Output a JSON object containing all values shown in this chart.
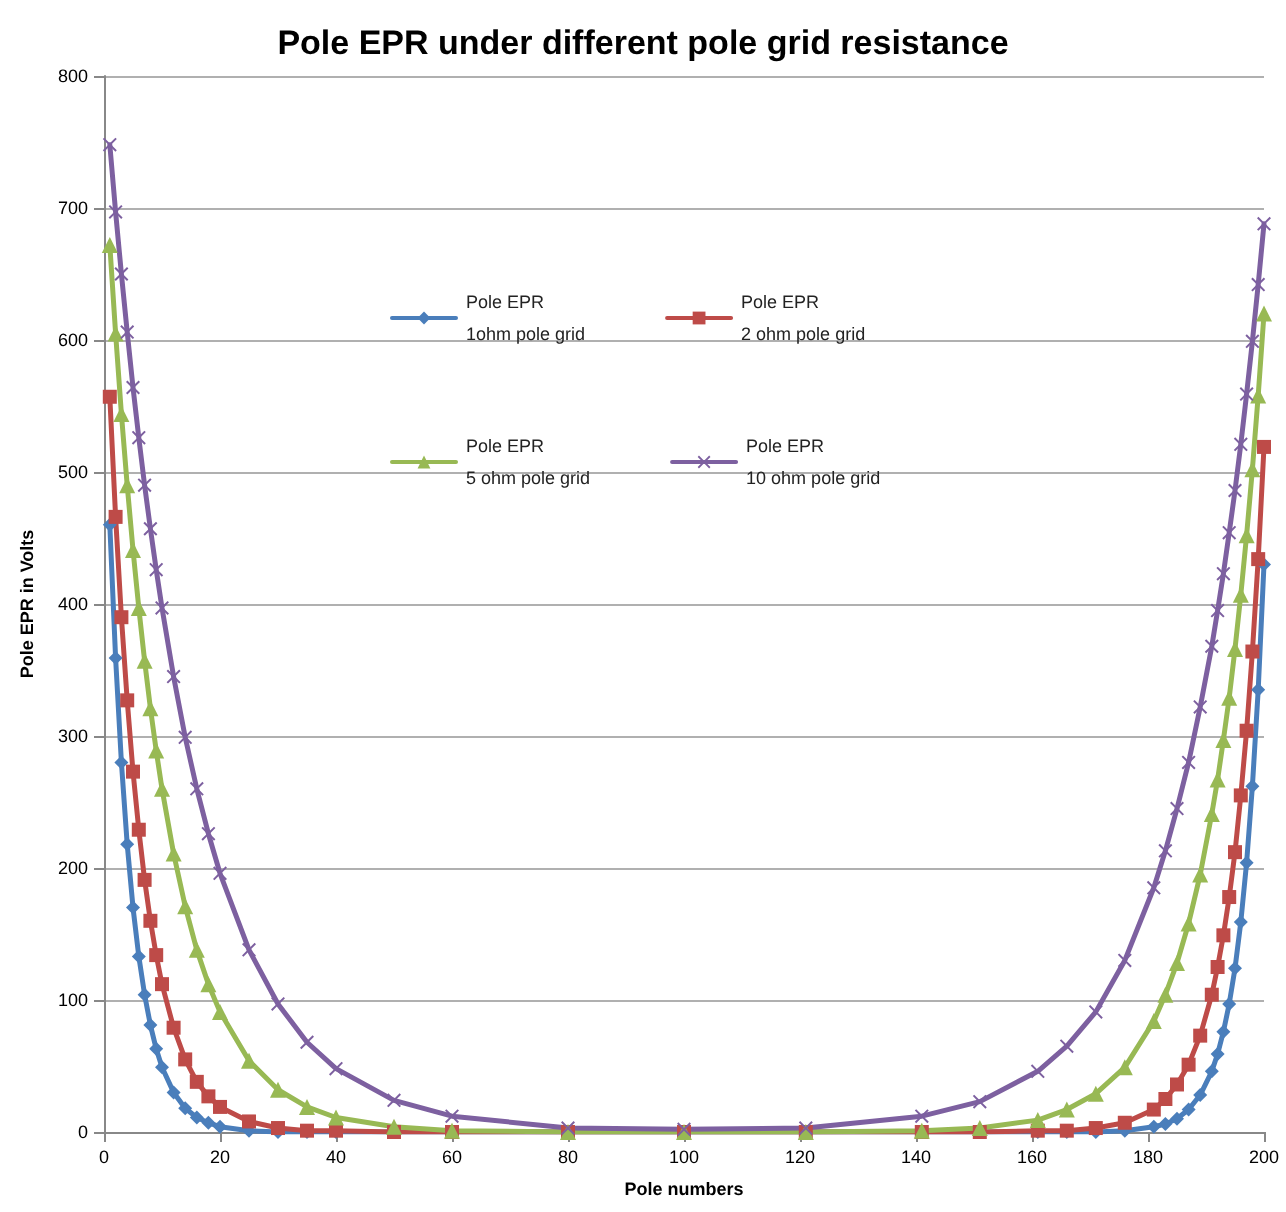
{
  "chart_data": {
    "type": "line",
    "title": "Pole EPR under different pole grid resistance",
    "xlabel": "Pole numbers",
    "ylabel": "Pole EPR in Volts",
    "x": [
      1,
      2,
      3,
      4,
      5,
      6,
      7,
      8,
      9,
      10,
      12,
      14,
      16,
      18,
      20,
      25,
      30,
      35,
      40,
      50,
      60,
      80,
      100,
      121,
      141,
      151,
      161,
      166,
      171,
      176,
      181,
      183,
      185,
      187,
      189,
      191,
      192,
      193,
      194,
      195,
      196,
      197,
      198,
      199,
      200
    ],
    "series": [
      {
        "name": "Pole EPR\n1ohm pole grid",
        "color": "#4a7ebb",
        "marker": "diamond",
        "values": [
          460,
          359,
          280,
          218,
          170,
          133,
          104,
          81,
          63,
          49,
          30,
          18,
          11,
          7,
          4,
          1,
          0,
          0,
          0,
          0,
          0,
          0,
          0,
          0,
          0,
          0,
          0,
          0,
          0,
          1,
          4,
          6,
          10,
          17,
          28,
          46,
          59,
          76,
          97,
          124,
          159,
          204,
          262,
          335,
          430
        ]
      },
      {
        "name": "Pole EPR\n2 ohm pole grid",
        "color": "#be4b48",
        "marker": "square",
        "values": [
          557,
          466,
          390,
          327,
          273,
          229,
          191,
          160,
          134,
          112,
          79,
          55,
          38,
          27,
          19,
          8,
          3,
          1,
          1,
          0,
          0,
          0,
          0,
          0,
          0,
          0,
          1,
          1,
          3,
          7,
          17,
          25,
          36,
          51,
          73,
          104,
          125,
          149,
          178,
          212,
          255,
          304,
          364,
          434,
          519
        ]
      },
      {
        "name": "Pole EPR\n5 ohm pole grid",
        "color": "#98b954",
        "marker": "triangle",
        "values": [
          672,
          605,
          544,
          490,
          441,
          397,
          357,
          321,
          289,
          260,
          211,
          171,
          138,
          112,
          91,
          54,
          32,
          19,
          11,
          4,
          1,
          0,
          0,
          0,
          1,
          3,
          9,
          17,
          29,
          49,
          84,
          104,
          128,
          158,
          195,
          241,
          267,
          297,
          329,
          366,
          407,
          452,
          502,
          558,
          620
        ]
      },
      {
        "name": "Pole EPR\n10 ohm pole grid",
        "color": "#7d60a0",
        "marker": "cross",
        "values": [
          748,
          697,
          650,
          606,
          564,
          526,
          490,
          457,
          426,
          397,
          345,
          299,
          260,
          226,
          196,
          138,
          97,
          68,
          48,
          24,
          12,
          3,
          2,
          3,
          12,
          23,
          46,
          65,
          91,
          130,
          185,
          213,
          245,
          280,
          322,
          368,
          395,
          423,
          454,
          486,
          521,
          559,
          599,
          642,
          688
        ]
      }
    ],
    "xlim": [
      0,
      200
    ],
    "xticks": [
      0,
      20,
      40,
      60,
      80,
      100,
      120,
      140,
      160,
      180,
      200
    ],
    "ylim": [
      0,
      800
    ],
    "yticks": [
      0,
      100,
      200,
      300,
      400,
      500,
      600,
      700,
      800
    ],
    "grid": "y",
    "legend": "top",
    "line_style": "solid"
  }
}
